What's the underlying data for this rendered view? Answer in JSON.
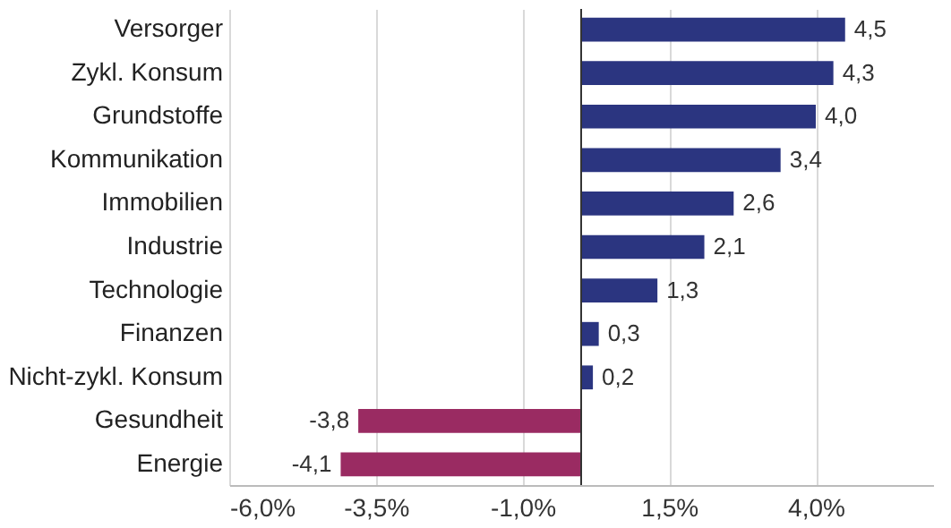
{
  "chart_data": {
    "type": "bar",
    "orientation": "horizontal",
    "categories": [
      "Versorger",
      "Zykl. Konsum",
      "Grundstoffe",
      "Kommunikation",
      "Immobilien",
      "Industrie",
      "Technologie",
      "Finanzen",
      "Nicht-zykl. Konsum",
      "Gesundheit",
      "Energie"
    ],
    "values": [
      4.5,
      4.3,
      4.0,
      3.4,
      2.6,
      2.1,
      1.3,
      0.3,
      0.2,
      -3.8,
      -4.1
    ],
    "value_labels": [
      "4,5",
      "4,3",
      "4,0",
      "3,4",
      "2,6",
      "2,1",
      "1,3",
      "0,3",
      "0,2",
      "-3,8",
      "-4,1"
    ],
    "colors": [
      "#2b3580",
      "#2b3580",
      "#2b3580",
      "#2b3580",
      "#2b3580",
      "#2b3580",
      "#2b3580",
      "#2b3580",
      "#2b3580",
      "#9a2b62",
      "#9a2b62"
    ],
    "xlim": [
      -6,
      6
    ],
    "xticks": [
      {
        "value": -6,
        "label": "-6,0%"
      },
      {
        "value": -3.5,
        "label": "-3,5%"
      },
      {
        "value": -1,
        "label": "-1,0%"
      },
      {
        "value": 1.5,
        "label": "1,5%"
      },
      {
        "value": 4,
        "label": "4,0%"
      }
    ],
    "grid": "x"
  }
}
